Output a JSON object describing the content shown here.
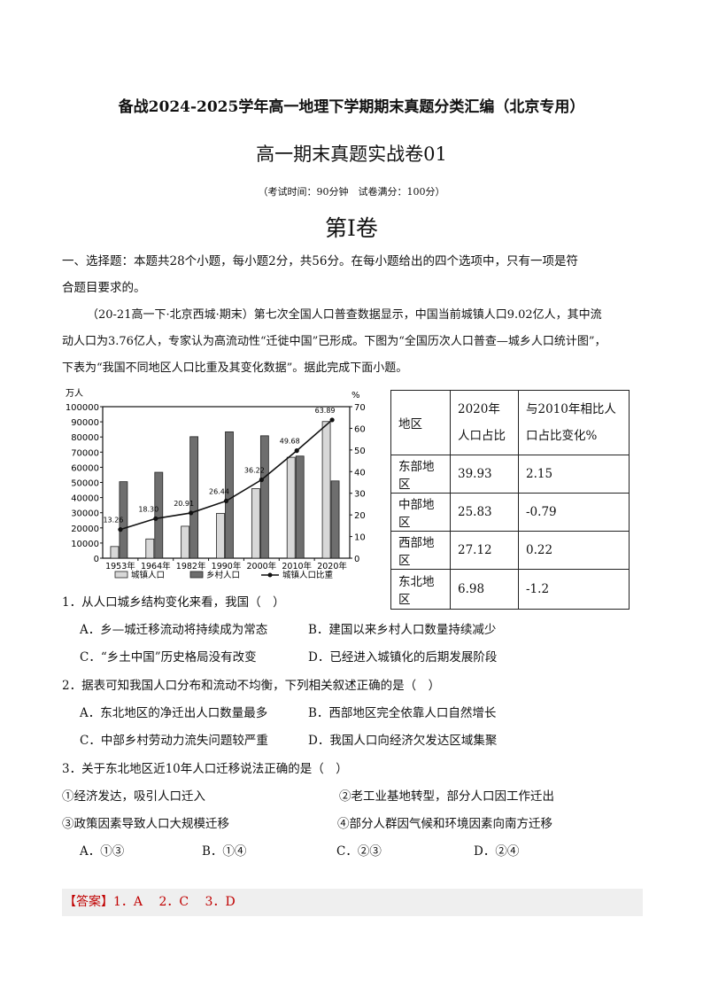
{
  "header": {
    "series_title": "备战2024-2025学年高一地理下学期期末真题分类汇编（北京专用）",
    "paper_title": "高一期末真题实战卷01",
    "exam_info": "（考试时间：90分钟　试卷满分：100分）",
    "volume": "第I卷"
  },
  "section": {
    "instructions_line1": "一、选择题：本题共28个小题，每小题2分，共56分。在每小题给出的四个选项中，只有一项是符",
    "instructions_line2": "合题目要求的。"
  },
  "stem": {
    "line1": "（20-21高一下·北京西城·期末）第七次全国人口普查数据显示，中国当前城镇人口9.02亿人，其中流",
    "line2": "动人口为3.76亿人，专家认为高流动性“迁徙中国”已形成。下图为“全国历次人口普查—城乡人口统计图”，",
    "line3": "下表为“我国不同地区人口比重及其变化数据”。据此完成下面小题。"
  },
  "chart_data": {
    "type": "bar",
    "categories": [
      "1953年",
      "1964年",
      "1982年",
      "1990年",
      "2000年",
      "2010年",
      "2020年"
    ],
    "left_unit": "万人",
    "right_unit": "%",
    "ylim": [
      0,
      100000
    ],
    "y2lim": [
      0,
      70
    ],
    "yticks": [
      "0",
      "10000",
      "20000",
      "30000",
      "40000",
      "50000",
      "60000",
      "70000",
      "80000",
      "90000",
      "100000"
    ],
    "y2ticks": [
      "0",
      "10",
      "20",
      "30",
      "40",
      "50",
      "60",
      "70"
    ],
    "series": [
      {
        "name": "城镇人口",
        "type": "bar",
        "color": "#d8d8d8",
        "values": [
          7700,
          12700,
          21100,
          29600,
          45900,
          66600,
          90200
        ]
      },
      {
        "name": "乡村人口",
        "type": "bar",
        "color": "#6e6e6e",
        "values": [
          50500,
          56700,
          80200,
          83400,
          80800,
          67400,
          51000
        ]
      },
      {
        "name": "城镇人口比重",
        "type": "line",
        "axis": "right",
        "color": "#111111",
        "values": [
          13.26,
          18.3,
          20.91,
          26.44,
          36.22,
          49.68,
          63.89
        ],
        "labels": [
          "13.26",
          "18.30",
          "20.91",
          "26.44",
          "36.22",
          "49.68",
          "63.89"
        ]
      }
    ],
    "legend": "bottom"
  },
  "table": {
    "headers": [
      "地区",
      "2020年人口占比",
      "与2010年相比人口占比变化%"
    ],
    "rows": [
      [
        "东部地区",
        "39.93",
        "2.15"
      ],
      [
        "中部地区",
        "25.83",
        "-0.79"
      ],
      [
        "西部地区",
        "27.12",
        "0.22"
      ],
      [
        "东北地区",
        "6.98",
        "-1.2"
      ]
    ]
  },
  "questions": [
    {
      "stem": "1．从人口城乡结构变化来看，我国（　）",
      "options": [
        "A．乡—城迁移流动将持续成为常态",
        "B．建国以来乡村人口数量持续减少",
        "C．“乡土中国”历史格局没有改变",
        "D．已经进入城镇化的后期发展阶段"
      ]
    },
    {
      "stem": "2．据表可知我国人口分布和流动不均衡，下列相关叙述正确的是（　）",
      "options": [
        "A．东北地区的净迁出人口数量最多",
        "B．西部地区完全依靠人口自然增长",
        "C．中部乡村劳动力流失问题较严重",
        "D．我国人口向经济欠发达区域集聚"
      ]
    },
    {
      "stem": "3．关于东北地区近10年人口迁移说法正确的是（　）",
      "statements": [
        "①经济发达，吸引人口迁入",
        "②老工业基地转型，部分人口因工作迁出",
        "③政策因素导致人口大规模迁移",
        "④部分人群因气候和环境因素向南方迁移"
      ],
      "options": [
        "A．①③",
        "B．①④",
        "C．②③",
        "D．②④"
      ]
    }
  ],
  "answer": {
    "tag": "【答案】",
    "values": "1．A　 2．C　 3．D"
  }
}
